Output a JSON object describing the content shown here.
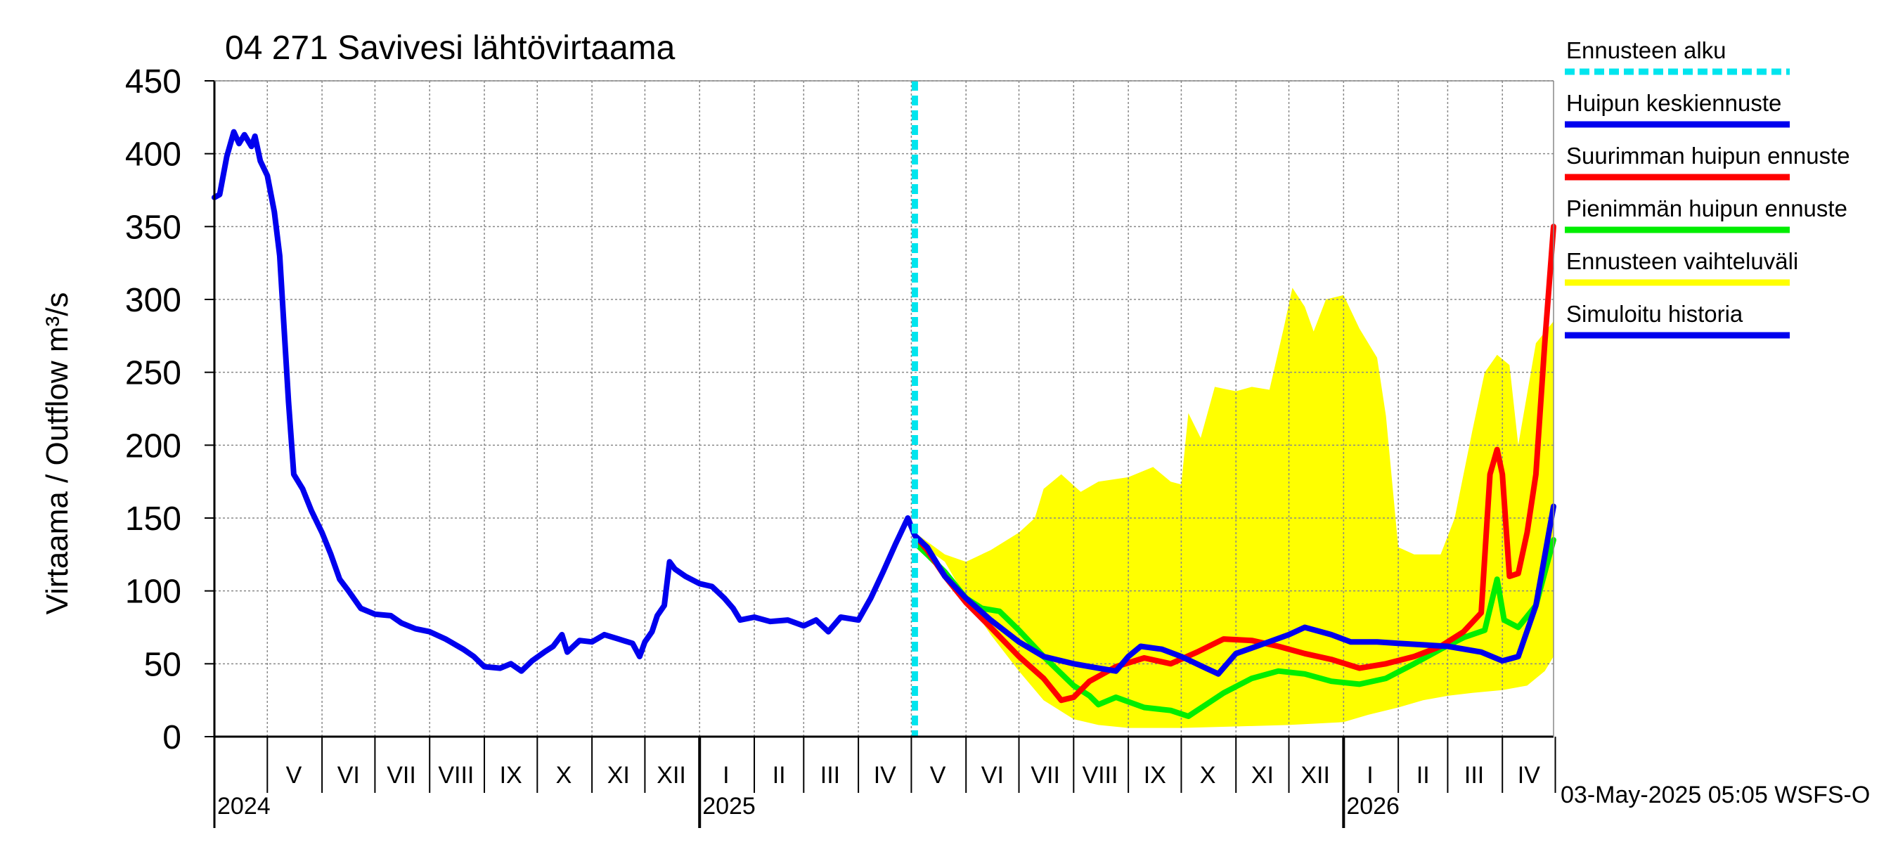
{
  "chart_data": {
    "type": "line",
    "title": "04 271 Savivesi lähtövirtaama",
    "ylabel": "Virtaama / Outflow    m³/s",
    "ylim": [
      0,
      450
    ],
    "yticks": [
      0,
      50,
      100,
      150,
      200,
      250,
      300,
      350,
      400,
      450
    ],
    "x_range": [
      "2024-04-01",
      "2026-04-30"
    ],
    "forecast_start": "2025-05-03",
    "month_labels": [
      {
        "label": "V",
        "date": "2024-05-16"
      },
      {
        "label": "VI",
        "date": "2024-06-16"
      },
      {
        "label": "VII",
        "date": "2024-07-16"
      },
      {
        "label": "VIII",
        "date": "2024-08-16"
      },
      {
        "label": "IX",
        "date": "2024-09-16"
      },
      {
        "label": "X",
        "date": "2024-10-16"
      },
      {
        "label": "XI",
        "date": "2024-11-16"
      },
      {
        "label": "XII",
        "date": "2024-12-16"
      },
      {
        "label": "I",
        "date": "2025-01-16"
      },
      {
        "label": "II",
        "date": "2025-02-15"
      },
      {
        "label": "III",
        "date": "2025-03-16"
      },
      {
        "label": "IV",
        "date": "2025-04-16"
      },
      {
        "label": "V",
        "date": "2025-05-16"
      },
      {
        "label": "VI",
        "date": "2025-06-16"
      },
      {
        "label": "VII",
        "date": "2025-07-16"
      },
      {
        "label": "VIII",
        "date": "2025-08-16"
      },
      {
        "label": "IX",
        "date": "2025-09-16"
      },
      {
        "label": "X",
        "date": "2025-10-16"
      },
      {
        "label": "XI",
        "date": "2025-11-16"
      },
      {
        "label": "XII",
        "date": "2025-12-16"
      },
      {
        "label": "I",
        "date": "2026-01-16"
      },
      {
        "label": "II",
        "date": "2026-02-15"
      },
      {
        "label": "III",
        "date": "2026-03-16"
      },
      {
        "label": "IV",
        "date": "2026-04-16"
      }
    ],
    "month_boundaries": [
      "2024-05-01",
      "2024-06-01",
      "2024-07-01",
      "2024-08-01",
      "2024-09-01",
      "2024-10-01",
      "2024-11-01",
      "2024-12-01",
      "2025-01-01",
      "2025-02-01",
      "2025-03-01",
      "2025-04-01",
      "2025-05-01",
      "2025-06-01",
      "2025-07-01",
      "2025-08-01",
      "2025-09-01",
      "2025-10-01",
      "2025-11-01",
      "2025-12-01",
      "2026-01-01",
      "2026-02-01",
      "2026-03-01",
      "2026-04-01",
      "2026-05-01"
    ],
    "year_boundaries": [
      "2025-01-01",
      "2026-01-01"
    ],
    "year_labels": [
      {
        "label": "2024",
        "date": "2024-04-01"
      },
      {
        "label": "2025",
        "date": "2025-01-01"
      },
      {
        "label": "2026",
        "date": "2026-01-01"
      }
    ],
    "legend": [
      {
        "label": "Ennusteen alku",
        "color": "#00e5ee",
        "style": "dashed"
      },
      {
        "label": "Huipun keskiennuste",
        "color": "#0000ee",
        "style": "solid"
      },
      {
        "label": "Suurimman huipun ennuste",
        "color": "#ff0000",
        "style": "solid"
      },
      {
        "label": "Pienimmän huipun ennuste",
        "color": "#00ee00",
        "style": "solid"
      },
      {
        "label": "Ennusteen vaihteluväli",
        "color": "#ffff00",
        "style": "solid"
      },
      {
        "label": "Simuloitu historia",
        "color": "#0000ee",
        "style": "solid"
      }
    ],
    "footer": "03-May-2025 05:05 WSFS-O",
    "series": [
      {
        "name": "Simuloitu historia",
        "color": "#0000ee",
        "points": [
          [
            "2024-04-01",
            370
          ],
          [
            "2024-04-04",
            372
          ],
          [
            "2024-04-08",
            398
          ],
          [
            "2024-04-12",
            415
          ],
          [
            "2024-04-15",
            407
          ],
          [
            "2024-04-18",
            413
          ],
          [
            "2024-04-22",
            405
          ],
          [
            "2024-04-24",
            412
          ],
          [
            "2024-04-27",
            395
          ],
          [
            "2024-05-01",
            385
          ],
          [
            "2024-05-05",
            360
          ],
          [
            "2024-05-08",
            330
          ],
          [
            "2024-05-11",
            270
          ],
          [
            "2024-05-13",
            230
          ],
          [
            "2024-05-16",
            180
          ],
          [
            "2024-05-21",
            170
          ],
          [
            "2024-05-26",
            155
          ],
          [
            "2024-06-01",
            140
          ],
          [
            "2024-06-06",
            125
          ],
          [
            "2024-06-11",
            108
          ],
          [
            "2024-06-16",
            100
          ],
          [
            "2024-06-23",
            88
          ],
          [
            "2024-07-01",
            84
          ],
          [
            "2024-07-10",
            83
          ],
          [
            "2024-07-16",
            78
          ],
          [
            "2024-07-24",
            74
          ],
          [
            "2024-08-01",
            72
          ],
          [
            "2024-08-10",
            67
          ],
          [
            "2024-08-20",
            60
          ],
          [
            "2024-08-26",
            55
          ],
          [
            "2024-09-01",
            48
          ],
          [
            "2024-09-10",
            47
          ],
          [
            "2024-09-16",
            50
          ],
          [
            "2024-09-22",
            45
          ],
          [
            "2024-09-28",
            52
          ],
          [
            "2024-10-05",
            58
          ],
          [
            "2024-10-10",
            62
          ],
          [
            "2024-10-15",
            70
          ],
          [
            "2024-10-18",
            58
          ],
          [
            "2024-10-25",
            66
          ],
          [
            "2024-11-01",
            65
          ],
          [
            "2024-11-08",
            70
          ],
          [
            "2024-11-16",
            67
          ],
          [
            "2024-11-24",
            64
          ],
          [
            "2024-11-28",
            55
          ],
          [
            "2024-12-01",
            65
          ],
          [
            "2024-12-05",
            72
          ],
          [
            "2024-12-08",
            83
          ],
          [
            "2024-12-12",
            90
          ],
          [
            "2024-12-15",
            120
          ],
          [
            "2024-12-18",
            115
          ],
          [
            "2024-12-24",
            110
          ],
          [
            "2025-01-01",
            105
          ],
          [
            "2025-01-08",
            103
          ],
          [
            "2025-01-15",
            95
          ],
          [
            "2025-01-20",
            88
          ],
          [
            "2025-01-24",
            80
          ],
          [
            "2025-02-01",
            82
          ],
          [
            "2025-02-10",
            79
          ],
          [
            "2025-02-20",
            80
          ],
          [
            "2025-03-01",
            76
          ],
          [
            "2025-03-08",
            80
          ],
          [
            "2025-03-15",
            72
          ],
          [
            "2025-03-22",
            82
          ],
          [
            "2025-04-01",
            80
          ],
          [
            "2025-04-08",
            95
          ],
          [
            "2025-04-15",
            113
          ],
          [
            "2025-04-22",
            132
          ],
          [
            "2025-04-29",
            150
          ],
          [
            "2025-05-03",
            138
          ]
        ]
      },
      {
        "name": "Huipun keskiennuste",
        "color": "#0000ee",
        "points": [
          [
            "2025-05-03",
            138
          ],
          [
            "2025-05-10",
            130
          ],
          [
            "2025-05-20",
            110
          ],
          [
            "2025-06-01",
            95
          ],
          [
            "2025-06-15",
            80
          ],
          [
            "2025-07-01",
            65
          ],
          [
            "2025-07-15",
            55
          ],
          [
            "2025-08-01",
            50
          ],
          [
            "2025-08-15",
            47
          ],
          [
            "2025-08-25",
            45
          ],
          [
            "2025-09-01",
            55
          ],
          [
            "2025-09-08",
            62
          ],
          [
            "2025-09-20",
            60
          ],
          [
            "2025-10-01",
            55
          ],
          [
            "2025-10-15",
            47
          ],
          [
            "2025-10-22",
            43
          ],
          [
            "2025-11-01",
            57
          ],
          [
            "2025-11-15",
            63
          ],
          [
            "2025-12-01",
            70
          ],
          [
            "2025-12-10",
            75
          ],
          [
            "2025-12-25",
            70
          ],
          [
            "2026-01-05",
            65
          ],
          [
            "2026-01-20",
            65
          ],
          [
            "2026-02-01",
            64
          ],
          [
            "2026-03-01",
            62
          ],
          [
            "2026-03-20",
            58
          ],
          [
            "2026-04-01",
            52
          ],
          [
            "2026-04-10",
            55
          ],
          [
            "2026-04-20",
            90
          ],
          [
            "2026-04-30",
            158
          ]
        ]
      },
      {
        "name": "Suurimman huipun ennuste",
        "color": "#ff0000",
        "points": [
          [
            "2025-05-03",
            138
          ],
          [
            "2025-05-10",
            128
          ],
          [
            "2025-05-20",
            110
          ],
          [
            "2025-06-01",
            92
          ],
          [
            "2025-06-15",
            75
          ],
          [
            "2025-07-01",
            55
          ],
          [
            "2025-07-15",
            40
          ],
          [
            "2025-07-25",
            25
          ],
          [
            "2025-08-01",
            27
          ],
          [
            "2025-08-10",
            38
          ],
          [
            "2025-08-25",
            48
          ],
          [
            "2025-09-10",
            54
          ],
          [
            "2025-09-25",
            50
          ],
          [
            "2025-10-10",
            58
          ],
          [
            "2025-10-25",
            67
          ],
          [
            "2025-11-10",
            66
          ],
          [
            "2025-11-25",
            62
          ],
          [
            "2025-12-10",
            57
          ],
          [
            "2025-12-25",
            53
          ],
          [
            "2026-01-10",
            47
          ],
          [
            "2026-01-25",
            50
          ],
          [
            "2026-02-10",
            55
          ],
          [
            "2026-02-25",
            62
          ],
          [
            "2026-03-10",
            72
          ],
          [
            "2026-03-20",
            85
          ],
          [
            "2026-03-25",
            180
          ],
          [
            "2026-03-29",
            197
          ],
          [
            "2026-04-01",
            180
          ],
          [
            "2026-04-05",
            110
          ],
          [
            "2026-04-10",
            112
          ],
          [
            "2026-04-15",
            140
          ],
          [
            "2026-04-20",
            180
          ],
          [
            "2026-04-25",
            270
          ],
          [
            "2026-04-30",
            350
          ]
        ]
      },
      {
        "name": "Pienimmän huipun ennuste",
        "color": "#00ee00",
        "points": [
          [
            "2025-05-03",
            133
          ],
          [
            "2025-05-10",
            125
          ],
          [
            "2025-05-20",
            113
          ],
          [
            "2025-06-01",
            95
          ],
          [
            "2025-06-10",
            88
          ],
          [
            "2025-06-20",
            86
          ],
          [
            "2025-07-01",
            73
          ],
          [
            "2025-07-15",
            55
          ],
          [
            "2025-08-01",
            35
          ],
          [
            "2025-08-10",
            28
          ],
          [
            "2025-08-15",
            22
          ],
          [
            "2025-08-25",
            27
          ],
          [
            "2025-09-10",
            20
          ],
          [
            "2025-09-25",
            18
          ],
          [
            "2025-10-05",
            14
          ],
          [
            "2025-10-15",
            22
          ],
          [
            "2025-10-25",
            30
          ],
          [
            "2025-11-10",
            40
          ],
          [
            "2025-11-25",
            45
          ],
          [
            "2025-12-10",
            43
          ],
          [
            "2025-12-25",
            38
          ],
          [
            "2026-01-10",
            36
          ],
          [
            "2026-01-25",
            40
          ],
          [
            "2026-02-10",
            50
          ],
          [
            "2026-02-25",
            60
          ],
          [
            "2026-03-10",
            68
          ],
          [
            "2026-03-22",
            73
          ],
          [
            "2026-03-29",
            108
          ],
          [
            "2026-04-02",
            80
          ],
          [
            "2026-04-10",
            75
          ],
          [
            "2026-04-20",
            90
          ],
          [
            "2026-04-30",
            135
          ]
        ]
      }
    ],
    "band": {
      "name": "Ennusteen vaihteluväli",
      "color": "#ffff00",
      "upper": [
        [
          "2025-05-03",
          140
        ],
        [
          "2025-05-20",
          125
        ],
        [
          "2025-06-01",
          120
        ],
        [
          "2025-06-15",
          128
        ],
        [
          "2025-07-01",
          140
        ],
        [
          "2025-07-10",
          150
        ],
        [
          "2025-07-15",
          170
        ],
        [
          "2025-07-25",
          180
        ],
        [
          "2025-08-05",
          168
        ],
        [
          "2025-08-15",
          175
        ],
        [
          "2025-09-01",
          178
        ],
        [
          "2025-09-15",
          185
        ],
        [
          "2025-09-25",
          175
        ],
        [
          "2025-10-01",
          173
        ],
        [
          "2025-10-05",
          222
        ],
        [
          "2025-10-12",
          205
        ],
        [
          "2025-10-20",
          240
        ],
        [
          "2025-11-01",
          237
        ],
        [
          "2025-11-10",
          240
        ],
        [
          "2025-11-20",
          238
        ],
        [
          "2025-11-28",
          280
        ],
        [
          "2025-12-03",
          308
        ],
        [
          "2025-12-10",
          295
        ],
        [
          "2025-12-15",
          278
        ],
        [
          "2025-12-22",
          300
        ],
        [
          "2026-01-01",
          303
        ],
        [
          "2026-01-10",
          280
        ],
        [
          "2026-01-20",
          260
        ],
        [
          "2026-01-25",
          220
        ],
        [
          "2026-02-01",
          130
        ],
        [
          "2026-02-10",
          125
        ],
        [
          "2026-02-25",
          125
        ],
        [
          "2026-03-05",
          150
        ],
        [
          "2026-03-15",
          210
        ],
        [
          "2026-03-22",
          250
        ],
        [
          "2026-03-29",
          262
        ],
        [
          "2026-04-05",
          255
        ],
        [
          "2026-04-10",
          200
        ],
        [
          "2026-04-20",
          270
        ],
        [
          "2026-04-30",
          285
        ]
      ],
      "lower": [
        [
          "2025-05-03",
          135
        ],
        [
          "2025-05-20",
          120
        ],
        [
          "2025-06-01",
          95
        ],
        [
          "2025-06-15",
          70
        ],
        [
          "2025-07-01",
          45
        ],
        [
          "2025-07-15",
          25
        ],
        [
          "2025-08-01",
          12
        ],
        [
          "2025-08-15",
          8
        ],
        [
          "2025-09-01",
          6
        ],
        [
          "2025-10-01",
          6
        ],
        [
          "2025-11-01",
          7
        ],
        [
          "2025-12-01",
          8
        ],
        [
          "2026-01-01",
          10
        ],
        [
          "2026-01-15",
          15
        ],
        [
          "2026-02-01",
          20
        ],
        [
          "2026-02-15",
          25
        ],
        [
          "2026-03-01",
          28
        ],
        [
          "2026-03-15",
          30
        ],
        [
          "2026-04-01",
          32
        ],
        [
          "2026-04-15",
          35
        ],
        [
          "2026-04-25",
          45
        ],
        [
          "2026-04-30",
          55
        ]
      ]
    }
  }
}
